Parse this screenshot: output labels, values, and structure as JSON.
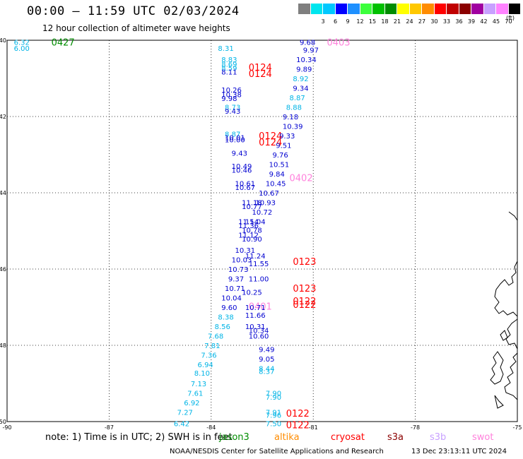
{
  "title": "00:00 — 11:59 UTC 02/03/2024",
  "subtitle": "12 hour collection of altimeter wave heights",
  "colorbar": {
    "unit": "(ft)",
    "items": [
      {
        "label": "",
        "color": "#7f7f7f"
      },
      {
        "label": "3",
        "color": "#00e5ee"
      },
      {
        "label": "6",
        "color": "#00c8ff"
      },
      {
        "label": "9",
        "color": "#0000ff"
      },
      {
        "label": "12",
        "color": "#1e90ff"
      },
      {
        "label": "15",
        "color": "#3cff3c"
      },
      {
        "label": "18",
        "color": "#00c000"
      },
      {
        "label": "21",
        "color": "#008c00"
      },
      {
        "label": "24",
        "color": "#ffff00"
      },
      {
        "label": "27",
        "color": "#ffc800"
      },
      {
        "label": "30",
        "color": "#ff8c00"
      },
      {
        "label": "33",
        "color": "#ff0000"
      },
      {
        "label": "36",
        "color": "#c00000"
      },
      {
        "label": "39",
        "color": "#8b0000"
      },
      {
        "label": "42",
        "color": "#a000a0"
      },
      {
        "label": "45",
        "color": "#c8a0ff"
      },
      {
        "label": "70",
        "color": "#ff82ff"
      },
      {
        "label": "",
        "color": "#000000"
      }
    ]
  },
  "axes": {
    "lon_ticks": [
      "-90",
      "-87",
      "-84",
      "-81",
      "-78",
      "-75"
    ],
    "lat_ticks": [
      "-40",
      "-42",
      "-44",
      "-46",
      "-48",
      "-50"
    ]
  },
  "colors": {
    "light_blue": "#00b4e6",
    "dark_blue": "#0000d0",
    "red": "#ff0000",
    "pink": "#ff82dc",
    "green": "#008c00"
  },
  "pass_labels": [
    {
      "text": "0427",
      "lon": -88.7,
      "lat": -40.05,
      "color": "green"
    },
    {
      "text": "0403",
      "lon": -80.6,
      "lat": -40.05,
      "color": "pink"
    },
    {
      "text": "0124",
      "lon": -82.9,
      "lat": -40.7,
      "color": "red"
    },
    {
      "text": "0124",
      "lon": -82.9,
      "lat": -40.87,
      "color": "red"
    },
    {
      "text": "0124",
      "lon": -82.6,
      "lat": -42.5,
      "color": "red"
    },
    {
      "text": "0124",
      "lon": -82.6,
      "lat": -42.67,
      "color": "red"
    },
    {
      "text": "0402",
      "lon": -81.7,
      "lat": -43.6,
      "color": "pink"
    },
    {
      "text": "0123",
      "lon": -81.6,
      "lat": -45.8,
      "color": "red"
    },
    {
      "text": "0123",
      "lon": -81.6,
      "lat": -46.5,
      "color": "red"
    },
    {
      "text": "0122",
      "lon": -81.6,
      "lat": -46.83,
      "color": "red"
    },
    {
      "text": "0122",
      "lon": -81.6,
      "lat": -46.93,
      "color": "red"
    },
    {
      "text": "0401",
      "lon": -82.9,
      "lat": -46.97,
      "color": "pink"
    },
    {
      "text": "0122",
      "lon": -81.8,
      "lat": -49.78,
      "color": "red"
    },
    {
      "text": "0122",
      "lon": -81.8,
      "lat": -50.08,
      "color": "red"
    }
  ],
  "swh": [
    {
      "v": "6.32",
      "lon": -89.8,
      "lat": -40.05,
      "c": "light_blue"
    },
    {
      "v": "6.00",
      "lon": -89.8,
      "lat": -40.2,
      "c": "light_blue"
    },
    {
      "v": "8.31",
      "lon": -83.8,
      "lat": -40.2,
      "c": "light_blue"
    },
    {
      "v": "8.83",
      "lon": -83.7,
      "lat": -40.5,
      "c": "light_blue"
    },
    {
      "v": "8.69",
      "lon": -83.7,
      "lat": -40.62,
      "c": "light_blue"
    },
    {
      "v": "8.59",
      "lon": -83.7,
      "lat": -40.72,
      "c": "light_blue"
    },
    {
      "v": "8.11",
      "lon": -83.7,
      "lat": -40.82,
      "c": "dark_blue"
    },
    {
      "v": "9.68",
      "lon": -81.4,
      "lat": -40.05,
      "c": "dark_blue"
    },
    {
      "v": "9.97",
      "lon": -81.3,
      "lat": -40.25,
      "c": "dark_blue"
    },
    {
      "v": "10.34",
      "lon": -81.5,
      "lat": -40.5,
      "c": "dark_blue"
    },
    {
      "v": "9.89",
      "lon": -81.5,
      "lat": -40.75,
      "c": "dark_blue"
    },
    {
      "v": "8.92",
      "lon": -81.6,
      "lat": -41.0,
      "c": "light_blue"
    },
    {
      "v": "9.34",
      "lon": -81.6,
      "lat": -41.25,
      "c": "dark_blue"
    },
    {
      "v": "8.87",
      "lon": -81.7,
      "lat": -41.5,
      "c": "light_blue"
    },
    {
      "v": "8.88",
      "lon": -81.8,
      "lat": -41.75,
      "c": "light_blue"
    },
    {
      "v": "9.18",
      "lon": -81.9,
      "lat": -42.0,
      "c": "dark_blue"
    },
    {
      "v": "10.39",
      "lon": -81.9,
      "lat": -42.25,
      "c": "dark_blue"
    },
    {
      "v": "9.33",
      "lon": -82.0,
      "lat": -42.5,
      "c": "dark_blue"
    },
    {
      "v": "9.51",
      "lon": -82.1,
      "lat": -42.75,
      "c": "dark_blue"
    },
    {
      "v": "9.76",
      "lon": -82.2,
      "lat": -43.0,
      "c": "dark_blue"
    },
    {
      "v": "10.51",
      "lon": -82.3,
      "lat": -43.25,
      "c": "dark_blue"
    },
    {
      "v": "9.84",
      "lon": -82.3,
      "lat": -43.5,
      "c": "dark_blue"
    },
    {
      "v": "10.45",
      "lon": -82.4,
      "lat": -43.75,
      "c": "dark_blue"
    },
    {
      "v": "10.67",
      "lon": -82.6,
      "lat": -44.0,
      "c": "dark_blue"
    },
    {
      "v": "10.93",
      "lon": -82.7,
      "lat": -44.25,
      "c": "dark_blue"
    },
    {
      "v": "10.72",
      "lon": -82.8,
      "lat": -44.5,
      "c": "dark_blue"
    },
    {
      "v": "11.04",
      "lon": -83.0,
      "lat": -44.75,
      "c": "dark_blue"
    },
    {
      "v": "10.26",
      "lon": -83.7,
      "lat": -41.3,
      "c": "dark_blue"
    },
    {
      "v": "10.38",
      "lon": -83.7,
      "lat": -41.42,
      "c": "dark_blue"
    },
    {
      "v": "9.98",
      "lon": -83.7,
      "lat": -41.52,
      "c": "dark_blue"
    },
    {
      "v": "8.73",
      "lon": -83.6,
      "lat": -41.75,
      "c": "light_blue"
    },
    {
      "v": "9.43",
      "lon": -83.6,
      "lat": -41.85,
      "c": "dark_blue"
    },
    {
      "v": "8.87",
      "lon": -83.6,
      "lat": -42.45,
      "c": "light_blue"
    },
    {
      "v": "10.01",
      "lon": -83.6,
      "lat": -42.55,
      "c": "dark_blue"
    },
    {
      "v": "10.00",
      "lon": -83.6,
      "lat": -42.6,
      "c": "dark_blue"
    },
    {
      "v": "9.43",
      "lon": -83.4,
      "lat": -42.95,
      "c": "dark_blue"
    },
    {
      "v": "10.49",
      "lon": -83.4,
      "lat": -43.3,
      "c": "dark_blue"
    },
    {
      "v": "10.46",
      "lon": -83.4,
      "lat": -43.4,
      "c": "dark_blue"
    },
    {
      "v": "10.61",
      "lon": -83.3,
      "lat": -43.75,
      "c": "dark_blue"
    },
    {
      "v": "10.67",
      "lon": -83.3,
      "lat": -43.85,
      "c": "dark_blue"
    },
    {
      "v": "11.18",
      "lon": -83.1,
      "lat": -44.25,
      "c": "dark_blue"
    },
    {
      "v": "10.77",
      "lon": -83.1,
      "lat": -44.35,
      "c": "dark_blue"
    },
    {
      "v": "11.54",
      "lon": -83.2,
      "lat": -44.75,
      "c": "dark_blue"
    },
    {
      "v": "11.36",
      "lon": -83.2,
      "lat": -44.85,
      "c": "dark_blue"
    },
    {
      "v": "10.78",
      "lon": -83.1,
      "lat": -44.97,
      "c": "dark_blue"
    },
    {
      "v": "11.12",
      "lon": -83.2,
      "lat": -45.1,
      "c": "dark_blue"
    },
    {
      "v": "10.90",
      "lon": -83.1,
      "lat": -45.2,
      "c": "dark_blue"
    },
    {
      "v": "10.31",
      "lon": -83.3,
      "lat": -45.5,
      "c": "dark_blue"
    },
    {
      "v": "11.24",
      "lon": -83.0,
      "lat": -45.65,
      "c": "dark_blue"
    },
    {
      "v": "10.03",
      "lon": -83.4,
      "lat": -45.75,
      "c": "dark_blue"
    },
    {
      "v": "11.55",
      "lon": -82.9,
      "lat": -45.85,
      "c": "dark_blue"
    },
    {
      "v": "10.73",
      "lon": -83.5,
      "lat": -46.0,
      "c": "dark_blue"
    },
    {
      "v": "9.37",
      "lon": -83.5,
      "lat": -46.25,
      "c": "dark_blue"
    },
    {
      "v": "11.00",
      "lon": -82.9,
      "lat": -46.25,
      "c": "dark_blue"
    },
    {
      "v": "10.71",
      "lon": -83.6,
      "lat": -46.5,
      "c": "dark_blue"
    },
    {
      "v": "10.25",
      "lon": -83.1,
      "lat": -46.6,
      "c": "dark_blue"
    },
    {
      "v": "10.04",
      "lon": -83.7,
      "lat": -46.75,
      "c": "dark_blue"
    },
    {
      "v": "10.71",
      "lon": -83.0,
      "lat": -47.0,
      "c": "dark_blue"
    },
    {
      "v": "9.60",
      "lon": -83.7,
      "lat": -47.0,
      "c": "dark_blue"
    },
    {
      "v": "11.66",
      "lon": -83.0,
      "lat": -47.2,
      "c": "dark_blue"
    },
    {
      "v": "8.38",
      "lon": -83.8,
      "lat": -47.25,
      "c": "light_blue"
    },
    {
      "v": "10.31",
      "lon": -83.0,
      "lat": -47.5,
      "c": "dark_blue"
    },
    {
      "v": "8.56",
      "lon": -83.9,
      "lat": -47.5,
      "c": "light_blue"
    },
    {
      "v": "10.34",
      "lon": -82.9,
      "lat": -47.6,
      "c": "dark_blue"
    },
    {
      "v": "7.68",
      "lon": -84.1,
      "lat": -47.75,
      "c": "light_blue"
    },
    {
      "v": "10.60",
      "lon": -82.9,
      "lat": -47.75,
      "c": "dark_blue"
    },
    {
      "v": "7.81",
      "lon": -84.2,
      "lat": -48.0,
      "c": "light_blue"
    },
    {
      "v": "9.49",
      "lon": -82.6,
      "lat": -48.1,
      "c": "dark_blue"
    },
    {
      "v": "7.36",
      "lon": -84.3,
      "lat": -48.25,
      "c": "light_blue"
    },
    {
      "v": "9.05",
      "lon": -82.6,
      "lat": -48.35,
      "c": "dark_blue"
    },
    {
      "v": "6.94",
      "lon": -84.4,
      "lat": -48.5,
      "c": "light_blue"
    },
    {
      "v": "8.44",
      "lon": -82.6,
      "lat": -48.6,
      "c": "light_blue"
    },
    {
      "v": "8.10",
      "lon": -84.5,
      "lat": -48.72,
      "c": "light_blue"
    },
    {
      "v": "8.37",
      "lon": -82.6,
      "lat": -48.68,
      "c": "light_blue"
    },
    {
      "v": "7.13",
      "lon": -84.6,
      "lat": -49.0,
      "c": "light_blue"
    },
    {
      "v": "7.61",
      "lon": -84.7,
      "lat": -49.25,
      "c": "light_blue"
    },
    {
      "v": "7.90",
      "lon": -82.4,
      "lat": -49.25,
      "c": "light_blue"
    },
    {
      "v": "7.90",
      "lon": -82.4,
      "lat": -49.35,
      "c": "light_blue"
    },
    {
      "v": "6.92",
      "lon": -84.8,
      "lat": -49.5,
      "c": "light_blue"
    },
    {
      "v": "7.91",
      "lon": -82.4,
      "lat": -49.75,
      "c": "light_blue"
    },
    {
      "v": "7.96",
      "lon": -82.4,
      "lat": -49.82,
      "c": "light_blue"
    },
    {
      "v": "7.27",
      "lon": -85.0,
      "lat": -49.75,
      "c": "light_blue"
    },
    {
      "v": "7.50",
      "lon": -82.4,
      "lat": -50.05,
      "c": "light_blue"
    },
    {
      "v": "6.42",
      "lon": -85.1,
      "lat": -50.05,
      "c": "light_blue"
    }
  ],
  "note": "note: 1) Time is in UTC; 2) SWH is in feet",
  "satellites": [
    {
      "name": "jason3",
      "color": "#008c00"
    },
    {
      "name": "altika",
      "color": "#ff8c00"
    },
    {
      "name": "cryosat",
      "color": "#ff0000"
    },
    {
      "name": "s3a",
      "color": "#8b0000"
    },
    {
      "name": "s3b",
      "color": "#c8a0ff"
    },
    {
      "name": "swot",
      "color": "#ff82dc"
    }
  ],
  "credit": "NOAA/NESDIS Center for Satellite Applications and Research",
  "timestamp": "13 Dec 23:13:11 UTC 2024"
}
